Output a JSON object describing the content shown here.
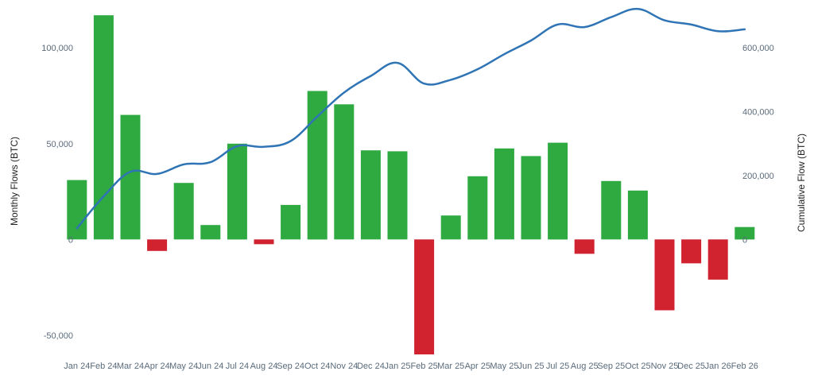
{
  "chart_data": {
    "type": "bar",
    "combo": "bar + line (dual axis)",
    "title": "",
    "categories": [
      "Jan 24",
      "Feb 24",
      "Mar 24",
      "Apr 24",
      "May 24",
      "Jun 24",
      "Jul 24",
      "Aug 24",
      "Sep 24",
      "Oct 24",
      "Nov 24",
      "Dec 24",
      "Jan 25",
      "Feb 25",
      "Mar 25",
      "Apr 25",
      "May 25",
      "Jun 25",
      "Jul 25",
      "Aug 25",
      "Sep 25",
      "Oct 25",
      "Nov 25",
      "Dec 25",
      "Jan 26",
      "Feb 26"
    ],
    "series": [
      {
        "axis": "left",
        "type": "bar",
        "values": [
          31000,
          117000,
          65000,
          -6000,
          29500,
          7500,
          50000,
          -2500,
          18000,
          77500,
          70500,
          46500,
          46000,
          -60000,
          12500,
          33000,
          47500,
          43500,
          50500,
          -7500,
          30500,
          25500,
          -37000,
          -12500,
          -21000,
          6500
        ]
      },
      {
        "axis": "right",
        "type": "line",
        "values": [
          35000,
          135000,
          212000,
          205000,
          235000,
          242000,
          292000,
          290000,
          308000,
          385000,
          460000,
          512000,
          553000,
          488000,
          500000,
          533000,
          580000,
          623000,
          673000,
          665000,
          696000,
          722000,
          686000,
          673000,
          652000,
          658000
        ]
      }
    ],
    "ylabel": "Monthly Flows (BTC)",
    "ylabel_right": "Cumulative Flow (BTC)",
    "ylim": [
      -60000,
      117500
    ],
    "ylim_right": [
      -360000,
      705000
    ],
    "yticks": [
      -50000,
      0,
      50000,
      100000
    ],
    "yticks_labels": [
      "-50,000",
      "0",
      "50,000",
      "100,000"
    ],
    "yticks_right": [
      0,
      200000,
      400000,
      600000
    ],
    "yticks_right_labels": [
      "0",
      "200,000",
      "400,000",
      "600,000"
    ],
    "grid": false,
    "legend": "none",
    "colors": {
      "positive": "#2eaa41",
      "negative": "#d0222f",
      "line": "#2f74b5"
    }
  }
}
